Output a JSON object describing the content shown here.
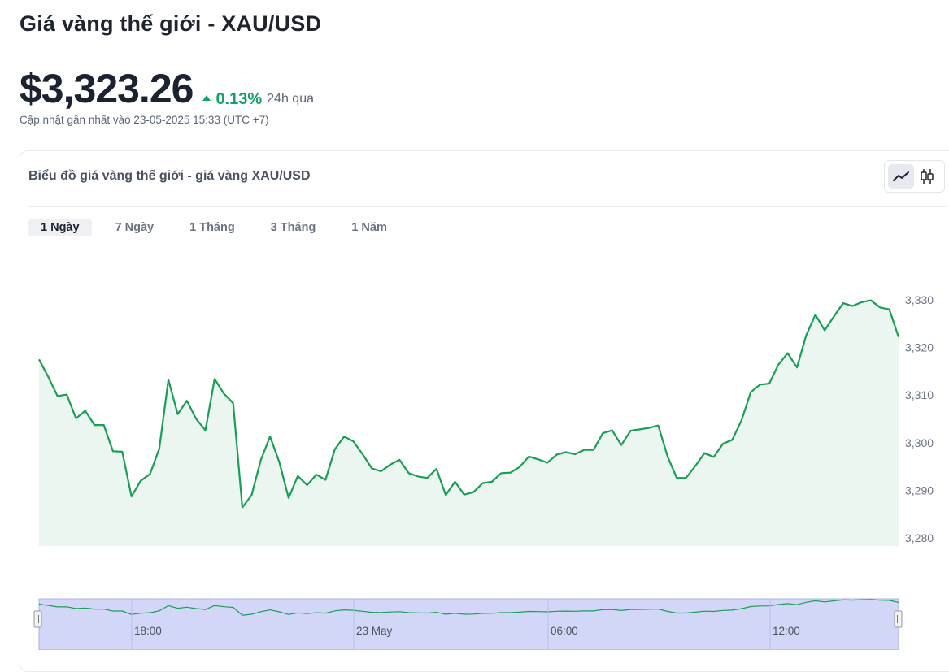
{
  "page": {
    "title": "Giá vàng thế giới - XAU/USD",
    "price": "$3,323.26",
    "change": "0.13%",
    "period": "24h qua",
    "updated": "Cập nhật gần nhất vào 23-05-2025 15:33 (UTC +7)"
  },
  "colors": {
    "accent": "#16a067",
    "line": "#1a9e57",
    "area": "#eaf6ef",
    "navigator": "#d2d7f8"
  },
  "card": {
    "title": "Biểu đồ giá vàng thế giới - giá vàng XAU/USD",
    "view_buttons": [
      {
        "name": "line-chart-icon",
        "active": true
      },
      {
        "name": "candlestick-icon",
        "active": false
      }
    ],
    "tabs": [
      {
        "label": "1 Ngày",
        "active": true
      },
      {
        "label": "7 Ngày",
        "active": false
      },
      {
        "label": "1 Tháng",
        "active": false
      },
      {
        "label": "3 Tháng",
        "active": false
      },
      {
        "label": "1 Năm",
        "active": false
      }
    ]
  },
  "chart_data": {
    "type": "area",
    "title": "",
    "xlabel": "",
    "ylabel": "",
    "ylim": [
      3280,
      3330
    ],
    "y_ticks": [
      3330,
      3320,
      3310,
      3300,
      3290,
      3280
    ],
    "y_tick_labels": [
      "3,330",
      "3,320",
      "3,310",
      "3,300",
      "3,290",
      "3,280"
    ],
    "grid": false,
    "series": [
      {
        "values": [
          3317.5,
          3313.8,
          3309.8,
          3310.1,
          3305.1,
          3306.7,
          3303.7,
          3303.7,
          3298.2,
          3298.1,
          3288.7,
          3292.0,
          3293.4,
          3298.7,
          3313.2,
          3306.0,
          3308.8,
          3305.0,
          3302.6,
          3313.4,
          3310.3,
          3308.3,
          3286.4,
          3289.0,
          3296.4,
          3301.3,
          3295.9,
          3288.4,
          3293.0,
          3291.1,
          3293.3,
          3292.2,
          3298.6,
          3301.3,
          3300.3,
          3297.6,
          3294.6,
          3294.0,
          3295.4,
          3296.4,
          3293.6,
          3292.9,
          3292.6,
          3294.5,
          3289.0,
          3291.8,
          3289.1,
          3289.6,
          3291.5,
          3291.8,
          3293.6,
          3293.7,
          3294.9,
          3297.1,
          3296.5,
          3295.8,
          3297.5,
          3298.0,
          3297.6,
          3298.5,
          3298.5,
          3302.0,
          3302.6,
          3299.5,
          3302.5,
          3302.8,
          3303.1,
          3303.6,
          3297.1,
          3292.6,
          3292.6,
          3295.1,
          3297.8,
          3297.0,
          3299.8,
          3300.6,
          3304.7,
          3310.6,
          3312.2,
          3312.4,
          3316.4,
          3318.8,
          3315.8,
          3322.5,
          3326.9,
          3323.6,
          3326.5,
          3329.3,
          3328.7,
          3329.5,
          3329.9,
          3328.4,
          3328.0,
          3322.2
        ]
      }
    ],
    "navigator": {
      "x_labels": [
        "18:00",
        "23 May",
        "06:00",
        "12:00"
      ]
    }
  }
}
